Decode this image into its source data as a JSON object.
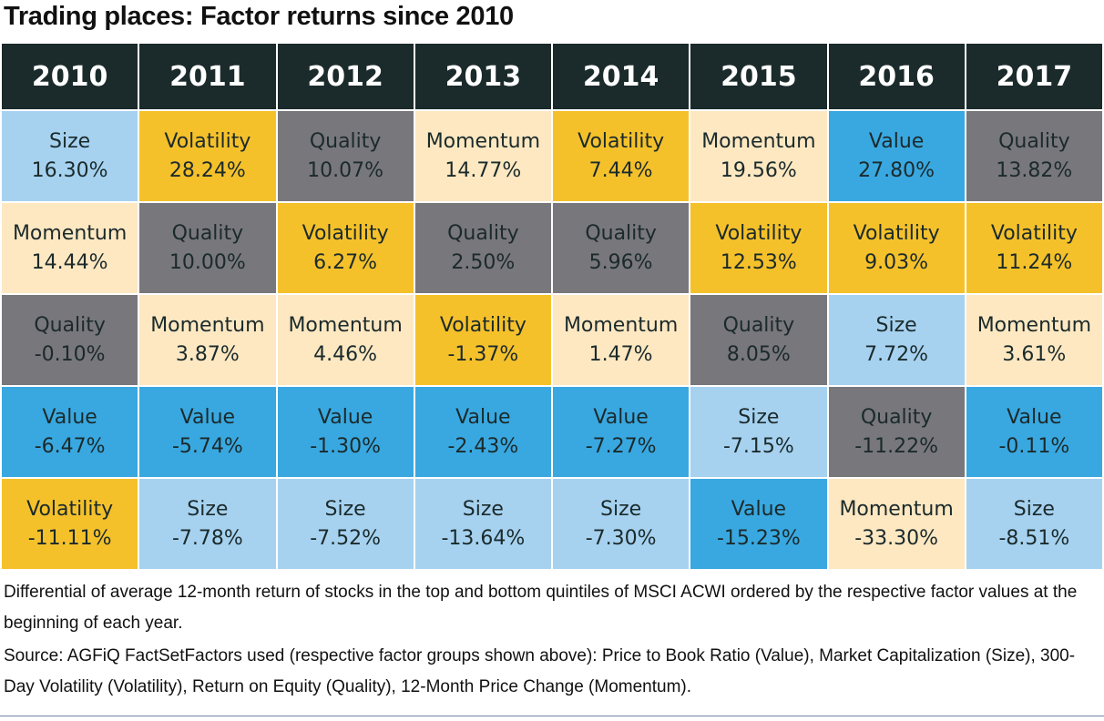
{
  "header": {
    "title": "Trading places: Factor returns since 2010"
  },
  "table": {
    "columns": [
      "2010",
      "2011",
      "2012",
      "2013",
      "2014",
      "2015",
      "2016",
      "2017"
    ],
    "rows": [
      [
        {
          "factor": "Size",
          "value": "16.30%",
          "color": "#a6d2f0"
        },
        {
          "factor": "Volatility",
          "value": "28.24%",
          "color": "#f5c12b"
        },
        {
          "factor": "Quality",
          "value": "10.07%",
          "color": "#78777c"
        },
        {
          "factor": "Momentum",
          "value": "14.77%",
          "color": "#fde8c2"
        },
        {
          "factor": "Volatility",
          "value": "7.44%",
          "color": "#f5c12b"
        },
        {
          "factor": "Momentum",
          "value": "19.56%",
          "color": "#fde8c2"
        },
        {
          "factor": "Value",
          "value": "27.80%",
          "color": "#39a8e0"
        },
        {
          "factor": "Quality",
          "value": "13.82%",
          "color": "#78777c"
        }
      ],
      [
        {
          "factor": "Momentum",
          "value": "14.44%",
          "color": "#fde8c2"
        },
        {
          "factor": "Quality",
          "value": "10.00%",
          "color": "#78777c"
        },
        {
          "factor": "Volatility",
          "value": "6.27%",
          "color": "#f5c12b"
        },
        {
          "factor": "Quality",
          "value": "2.50%",
          "color": "#78777c"
        },
        {
          "factor": "Quality",
          "value": "5.96%",
          "color": "#78777c"
        },
        {
          "factor": "Volatility",
          "value": "12.53%",
          "color": "#f5c12b"
        },
        {
          "factor": "Volatility",
          "value": "9.03%",
          "color": "#f5c12b"
        },
        {
          "factor": "Volatility",
          "value": "11.24%",
          "color": "#f5c12b"
        }
      ],
      [
        {
          "factor": "Quality",
          "value": "-0.10%",
          "color": "#78777c"
        },
        {
          "factor": "Momentum",
          "value": "3.87%",
          "color": "#fde8c2"
        },
        {
          "factor": "Momentum",
          "value": "4.46%",
          "color": "#fde8c2"
        },
        {
          "factor": "Volatility",
          "value": "-1.37%",
          "color": "#f5c12b"
        },
        {
          "factor": "Momentum",
          "value": "1.47%",
          "color": "#fde8c2"
        },
        {
          "factor": "Quality",
          "value": "8.05%",
          "color": "#78777c"
        },
        {
          "factor": "Size",
          "value": "7.72%",
          "color": "#a6d2f0"
        },
        {
          "factor": "Momentum",
          "value": "3.61%",
          "color": "#fde8c2"
        }
      ],
      [
        {
          "factor": "Value",
          "value": "-6.47%",
          "color": "#39a8e0"
        },
        {
          "factor": "Value",
          "value": "-5.74%",
          "color": "#39a8e0"
        },
        {
          "factor": "Value",
          "value": "-1.30%",
          "color": "#39a8e0"
        },
        {
          "factor": "Value",
          "value": "-2.43%",
          "color": "#39a8e0"
        },
        {
          "factor": "Value",
          "value": "-7.27%",
          "color": "#39a8e0"
        },
        {
          "factor": "Size",
          "value": "-7.15%",
          "color": "#a6d2f0"
        },
        {
          "factor": "Quality",
          "value": "-11.22%",
          "color": "#78777c"
        },
        {
          "factor": "Value",
          "value": "-0.11%",
          "color": "#39a8e0"
        }
      ],
      [
        {
          "factor": "Volatility",
          "value": "-11.11%",
          "color": "#f5c12b"
        },
        {
          "factor": "Size",
          "value": "-7.78%",
          "color": "#a6d2f0"
        },
        {
          "factor": "Size",
          "value": "-7.52%",
          "color": "#a6d2f0"
        },
        {
          "factor": "Size",
          "value": "-13.64%",
          "color": "#a6d2f0"
        },
        {
          "factor": "Size",
          "value": "-7.30%",
          "color": "#a6d2f0"
        },
        {
          "factor": "Value",
          "value": "-15.23%",
          "color": "#39a8e0"
        },
        {
          "factor": "Momentum",
          "value": "-33.30%",
          "color": "#fde8c2"
        },
        {
          "factor": "Size",
          "value": "-8.51%",
          "color": "#a6d2f0"
        }
      ]
    ]
  },
  "notes": [
    "Differential of average 12-month return of stocks in the top and bottom quintiles of MSCI ACWI ordered by the respective factor values at the beginning of each year.",
    "Source: AGFiQ FactSetFactors used (respective factor groups shown above): Price to Book Ratio (Value), Market Capitalization (Size), 300-Day Volatility (Volatility), Return on Equity (Quality), 12-Month Price Change (Momentum)."
  ]
}
